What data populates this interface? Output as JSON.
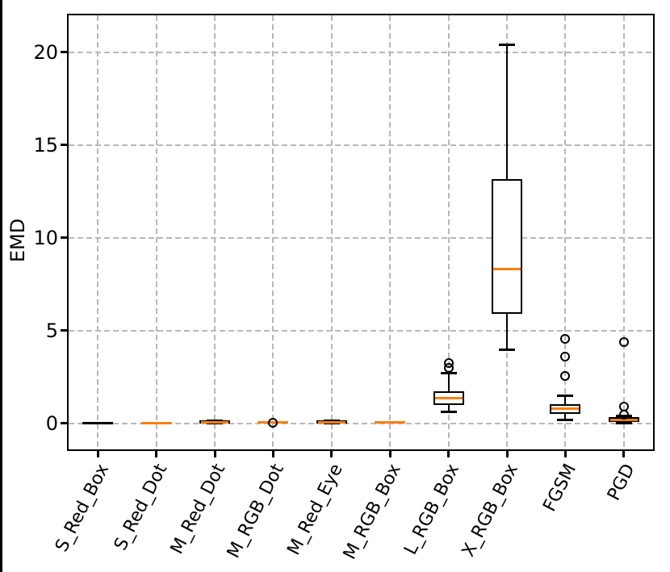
{
  "figure": {
    "title": ""
  },
  "chart_data": {
    "type": "box",
    "title": "",
    "xlabel": "",
    "ylabel": "EMD",
    "ylim": [
      -1.4,
      22.0
    ],
    "yticks": [
      0,
      5,
      10,
      15,
      20
    ],
    "grid": {
      "horizontal": true,
      "vertical": true,
      "style": "dashed"
    },
    "legend": "none",
    "colors": {
      "median": "#ff7f0e",
      "box_edge": "#000000",
      "grid": "#b8b8b8",
      "spine": "#000000"
    },
    "categories": [
      "S_Red_Box",
      "S_Red_Dot",
      "M_Red_Dot",
      "M_RGB_Dot",
      "M_Red_Eye",
      "M_RGB_Box",
      "L_RGB_Box",
      "X_RGB_Box",
      "FGSM",
      "PGD"
    ],
    "boxes": [
      {
        "label": "S_Red_Box",
        "whislo": 0,
        "q1": 0,
        "med": 0,
        "q3": 0,
        "whishi": 0,
        "fliers": [],
        "collapsed": true,
        "median_color": "#000000"
      },
      {
        "label": "S_Red_Dot",
        "whislo": 0,
        "q1": 0,
        "med": 0,
        "q3": 0,
        "whishi": 0,
        "fliers": [],
        "collapsed": true,
        "median_color": "#ff7f0e"
      },
      {
        "label": "M_Red_Dot",
        "whislo": 0,
        "q1": 0,
        "med": 0.05,
        "q3": 0.15,
        "whishi": 0.15,
        "fliers": [],
        "collapsed": false,
        "median_color": "#ff7f0e"
      },
      {
        "label": "M_RGB_Dot",
        "whislo": 0,
        "q1": 0,
        "med": 0.05,
        "q3": 0.1,
        "whishi": 0.1,
        "fliers": [
          0.05
        ],
        "collapsed": true,
        "median_color": "#ff7f0e"
      },
      {
        "label": "M_Red_Eye",
        "whislo": 0,
        "q1": 0,
        "med": 0.05,
        "q3": 0.15,
        "whishi": 0.15,
        "fliers": [],
        "collapsed": false,
        "median_color": "#ff7f0e"
      },
      {
        "label": "M_RGB_Box",
        "whislo": 0,
        "q1": 0,
        "med": 0.05,
        "q3": 0.05,
        "whishi": 0.05,
        "fliers": [],
        "collapsed": true,
        "median_color": "#ff7f0e"
      },
      {
        "label": "L_RGB_Box",
        "whislo": 0.62,
        "q1": 1.0,
        "med": 1.38,
        "q3": 1.74,
        "whishi": 2.71,
        "fliers": [
          3.0,
          3.27
        ],
        "collapsed": false,
        "median_color": "#ff7f0e"
      },
      {
        "label": "X_RGB_Box",
        "whislo": 3.95,
        "q1": 5.9,
        "med": 8.3,
        "q3": 13.15,
        "whishi": 20.4,
        "fliers": [],
        "collapsed": false,
        "median_color": "#ff7f0e"
      },
      {
        "label": "FGSM",
        "whislo": 0.17,
        "q1": 0.51,
        "med": 0.8,
        "q3": 1.04,
        "whishi": 1.48,
        "fliers": [
          2.55,
          3.6,
          4.55
        ],
        "collapsed": false,
        "median_color": "#ff7f0e"
      },
      {
        "label": "PGD",
        "whislo": 0.02,
        "q1": 0.1,
        "med": 0.2,
        "q3": 0.32,
        "whishi": 0.42,
        "fliers": [
          0.45,
          0.9,
          4.4
        ],
        "collapsed": false,
        "median_color": "#ff7f0e"
      }
    ]
  }
}
